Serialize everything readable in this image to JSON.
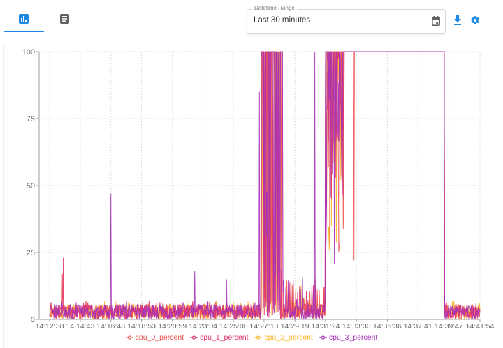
{
  "toolbar": {
    "tabs": [
      {
        "name": "chart",
        "icon": "bar-chart-icon",
        "active": true
      },
      {
        "name": "table",
        "icon": "document-list-icon",
        "active": false
      }
    ],
    "datetime_range": {
      "label": "Datetime Range",
      "value": "Last 30 minutes",
      "icon": "calendar-icon"
    },
    "download_icon": "download-icon",
    "settings_icon": "gear-icon",
    "accent_color": "#1e88e5"
  },
  "chart_data": {
    "type": "line",
    "title": "",
    "xlabel": "",
    "ylabel": "",
    "ylim": [
      0,
      100
    ],
    "yticks": [
      0,
      25,
      50,
      75,
      100
    ],
    "xticks": [
      "14:12:38",
      "14:14:43",
      "14:16:48",
      "14:18:53",
      "14:20:59",
      "14:23:04",
      "14:25:08",
      "14:27:13",
      "14:29:19",
      "14:31:24",
      "14:33:30",
      "14:35:36",
      "14:37:41",
      "14:39:47",
      "14:41:54"
    ],
    "grid": true,
    "legend_position": "bottom",
    "series": [
      {
        "name": "cpu_0_percent",
        "color": "#ef5350"
      },
      {
        "name": "cpu_1_percent",
        "color": "#e0336e"
      },
      {
        "name": "cpu_2_percent",
        "color": "#f9b626"
      },
      {
        "name": "cpu_3_percent",
        "color": "#a632b8"
      }
    ],
    "segments": [
      {
        "from": "14:12:38",
        "to": "14:27:00",
        "state": "idle",
        "range": [
          0,
          7
        ]
      },
      {
        "from": "14:27:00",
        "to": "14:28:30",
        "state": "busy",
        "range": [
          0,
          100
        ]
      },
      {
        "from": "14:28:30",
        "to": "14:31:24",
        "state": "mostly-idle",
        "range": [
          0,
          12
        ]
      },
      {
        "from": "14:31:24",
        "to": "14:32:40",
        "state": "busy",
        "range": [
          20,
          100
        ]
      },
      {
        "from": "14:32:40",
        "to": "14:39:30",
        "state": "saturated",
        "value": 100
      },
      {
        "from": "14:39:30",
        "to": "14:41:54",
        "state": "idle",
        "range": [
          0,
          7
        ]
      }
    ],
    "spikes": [
      {
        "time": "14:13:35",
        "series": "cpu_1_percent",
        "value": 23
      },
      {
        "time": "14:13:30",
        "series": "cpu_0_percent",
        "value": 17
      },
      {
        "time": "14:16:48",
        "series": "cpu_3_percent",
        "value": 47
      },
      {
        "time": "14:22:30",
        "series": "cpu_3_percent",
        "value": 18
      },
      {
        "time": "14:24:40",
        "series": "cpu_3_percent",
        "value": 15
      },
      {
        "time": "14:26:55",
        "series": "cpu_3_percent",
        "value": 85
      },
      {
        "time": "14:30:40",
        "series": "cpu_3_percent",
        "value": 100
      },
      {
        "time": "14:33:20",
        "series": "cpu_0_percent",
        "value": 22
      }
    ]
  }
}
